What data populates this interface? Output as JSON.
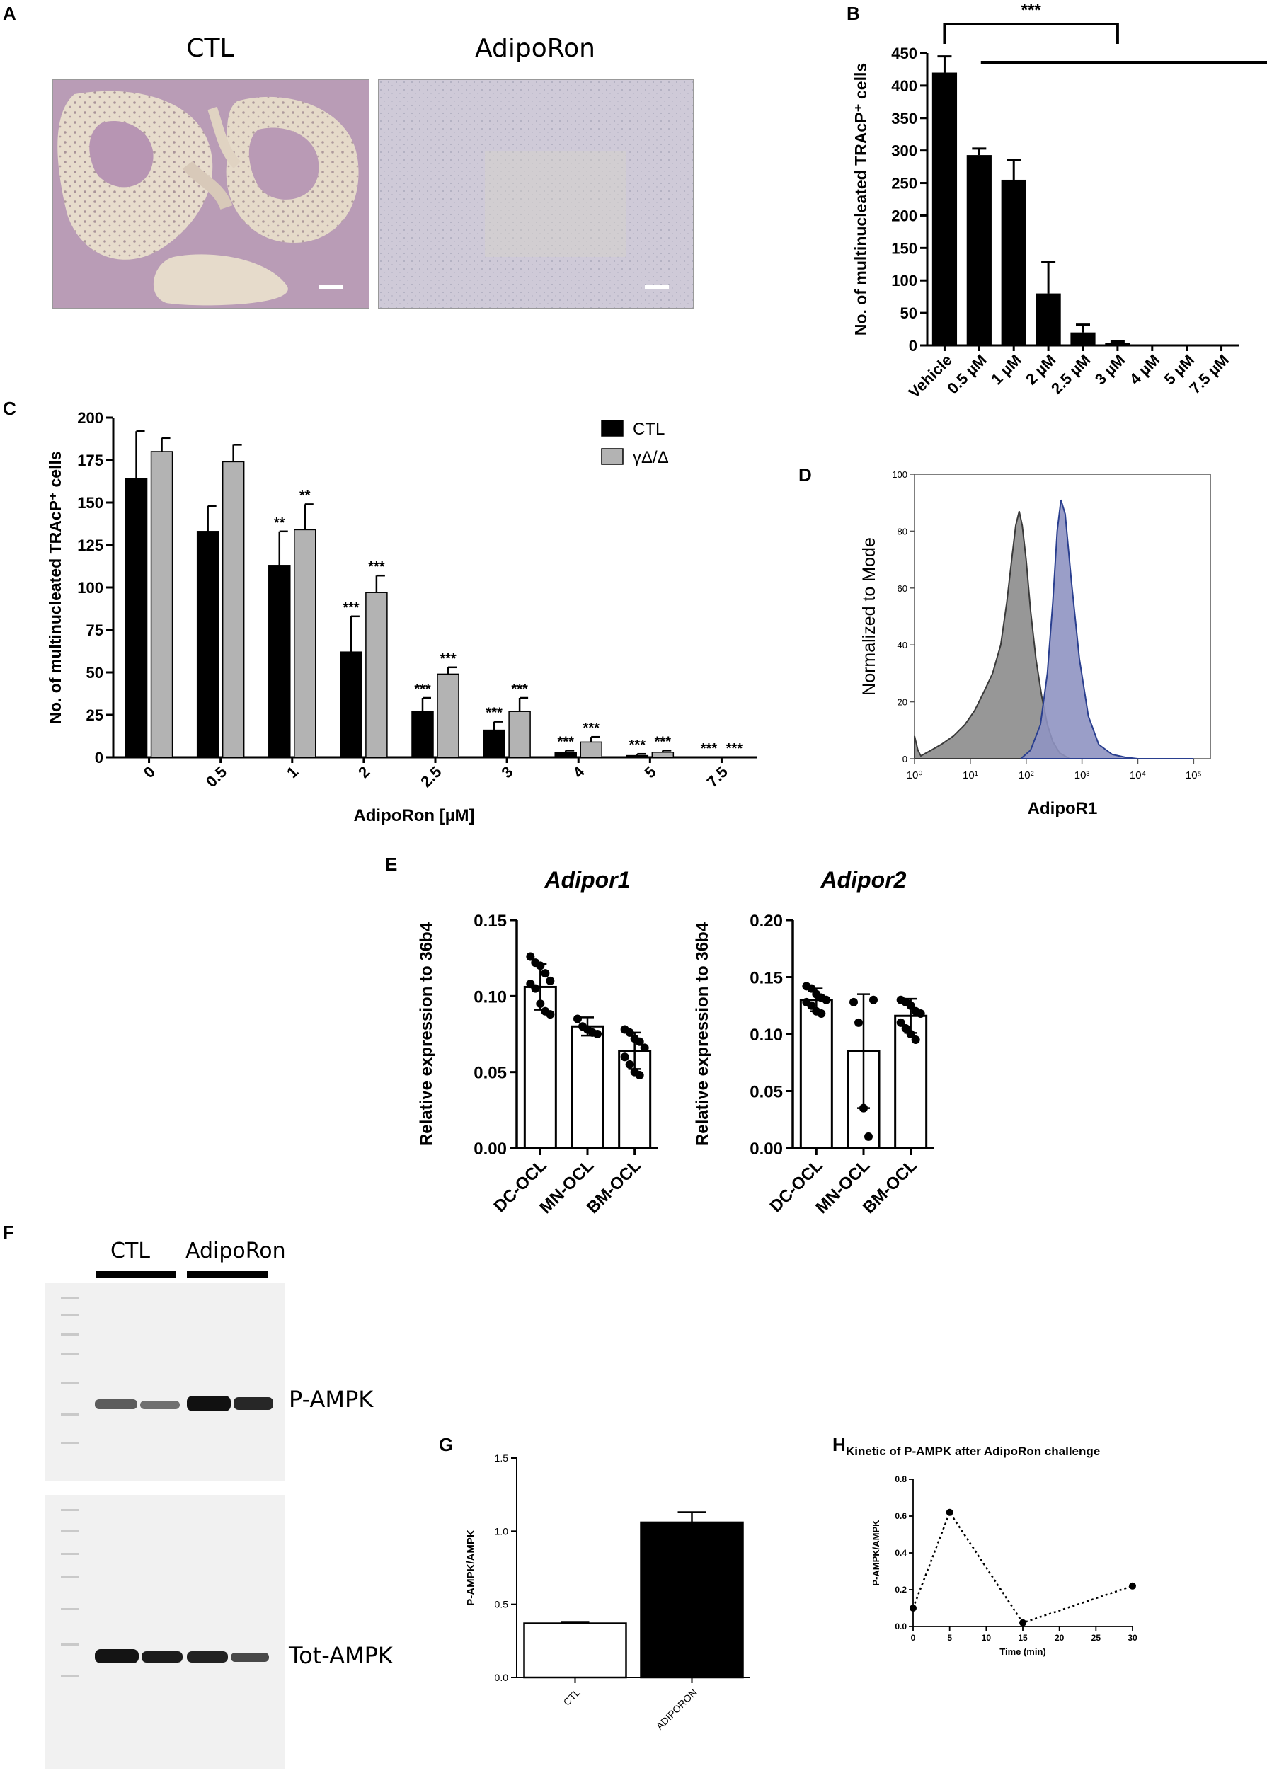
{
  "panels": {
    "A": {
      "label": "A",
      "images": [
        {
          "title": "CTL"
        },
        {
          "title": "AdipoRon"
        }
      ]
    },
    "B": {
      "label": "B"
    },
    "C": {
      "label": "C"
    },
    "D": {
      "label": "D"
    },
    "E": {
      "label": "E"
    },
    "F": {
      "label": "F",
      "groups": [
        "CTL",
        "AdipoRon"
      ],
      "bands": [
        "P-AMPK",
        "Tot-AMPK"
      ]
    },
    "G": {
      "label": "G"
    },
    "H": {
      "label": "H"
    }
  },
  "chart_data": [
    {
      "id": "B",
      "type": "bar",
      "ylabel": "No. of multinucleated TRAcP⁺ cells",
      "categories": [
        "Vehicle",
        "0.5 µM",
        "1 µM",
        "2 µM",
        "2.5 µM",
        "3 µM",
        "4 µM",
        "5 µM",
        "7.5 µM"
      ],
      "values": [
        420,
        293,
        255,
        80,
        20,
        4,
        0,
        0,
        0
      ],
      "errors": [
        25,
        10,
        30,
        48,
        12,
        2,
        0,
        0,
        0
      ],
      "ylim": [
        0,
        450
      ],
      "yticks": [
        0,
        50,
        100,
        150,
        200,
        250,
        300,
        350,
        400,
        450
      ],
      "significance": "***"
    },
    {
      "id": "C",
      "type": "bar",
      "xlabel": "AdipoRon [µM]",
      "ylabel": "No. of multinucleated TRAcP⁺ cells",
      "categories": [
        "0",
        "0.5",
        "1",
        "2",
        "2.5",
        "3",
        "4",
        "5",
        "7.5"
      ],
      "series": [
        {
          "name": "CTL",
          "color": "#000000",
          "values": [
            164,
            133,
            113,
            62,
            27,
            16,
            3,
            1,
            0
          ],
          "errors": [
            28,
            15,
            20,
            21,
            8,
            5,
            1,
            1,
            0
          ],
          "stars": [
            "",
            "",
            "**",
            "***",
            "***",
            "***",
            "***",
            "***",
            "***"
          ]
        },
        {
          "name": "γΔ/Δ",
          "color": "#b3b3b3",
          "values": [
            180,
            174,
            134,
            97,
            49,
            27,
            9,
            3,
            0
          ],
          "errors": [
            8,
            10,
            15,
            10,
            4,
            8,
            3,
            1,
            0
          ],
          "stars": [
            "",
            "",
            "**",
            "***",
            "***",
            "***",
            "***",
            "***",
            "***"
          ]
        }
      ],
      "ylim": [
        0,
        200
      ],
      "yticks": [
        0,
        25,
        50,
        75,
        100,
        125,
        150,
        175,
        200
      ],
      "legend": "top-right"
    },
    {
      "id": "D",
      "type": "area",
      "xlabel": "AdipoR1",
      "ylabel": "Normalized to Mode",
      "xscale": "log",
      "xticks": [
        "10⁰",
        "10¹",
        "10²",
        "10³",
        "10⁴",
        "10⁵"
      ],
      "yticks": [
        0,
        20,
        40,
        60,
        80,
        100
      ],
      "ylim": [
        0,
        100
      ],
      "series": [
        {
          "fill": "#8c8c8c",
          "stroke": "#3a3a3a",
          "x": [
            1.0,
            1.15,
            1.3,
            1.6,
            2,
            3,
            5,
            8,
            12,
            18,
            25,
            35,
            45,
            55,
            65,
            75,
            85,
            100,
            120,
            150,
            190,
            240,
            300,
            400,
            600
          ],
          "y": [
            8,
            3,
            1,
            2,
            3,
            5,
            8,
            12,
            17,
            24,
            30,
            40,
            55,
            70,
            82,
            87,
            82,
            70,
            52,
            35,
            22,
            12,
            6,
            2,
            0
          ]
        },
        {
          "fill": "#8f94c2",
          "stroke": "#2a3f8f",
          "x": [
            80,
            120,
            180,
            240,
            300,
            360,
            420,
            500,
            650,
            900,
            1300,
            2000,
            3500,
            6000,
            10000,
            50000,
            100000
          ],
          "y": [
            0,
            3,
            12,
            30,
            55,
            80,
            91,
            86,
            62,
            35,
            15,
            5,
            1.5,
            0.5,
            0,
            0,
            0
          ]
        }
      ]
    },
    {
      "id": "E1",
      "type": "bar",
      "title": "Adipor1",
      "ylabel": "Relative expression to 36b4",
      "categories": [
        "DC-OCL",
        "MN-OCL",
        "BM-OCL"
      ],
      "values": [
        0.106,
        0.08,
        0.064
      ],
      "errors": [
        0.015,
        0.006,
        0.012
      ],
      "points": [
        [
          0.126,
          0.122,
          0.12,
          0.115,
          0.11,
          0.108,
          0.105,
          0.095,
          0.09,
          0.088
        ],
        [
          0.085,
          0.08,
          0.078,
          0.076,
          0.075
        ],
        [
          0.078,
          0.076,
          0.072,
          0.07,
          0.066,
          0.06,
          0.055,
          0.05,
          0.048
        ]
      ],
      "ylim": [
        0,
        0.15
      ],
      "yticks": [
        "0.00",
        "0.05",
        "0.10",
        "0.15"
      ]
    },
    {
      "id": "E2",
      "type": "bar",
      "title": "Adipor2",
      "ylabel": "Relative expression to 36b4",
      "categories": [
        "DC-OCL",
        "MN-OCL",
        "BM-OCL"
      ],
      "values": [
        0.13,
        0.085,
        0.116
      ],
      "errors": [
        0.01,
        0.05,
        0.015
      ],
      "points": [
        [
          0.142,
          0.14,
          0.135,
          0.132,
          0.13,
          0.128,
          0.125,
          0.12,
          0.118
        ],
        [
          0.128,
          0.11,
          0.035,
          0.01,
          0.13
        ],
        [
          0.13,
          0.128,
          0.125,
          0.12,
          0.118,
          0.11,
          0.105,
          0.1,
          0.095
        ]
      ],
      "ylim": [
        0,
        0.2
      ],
      "yticks": [
        "0.00",
        "0.05",
        "0.10",
        "0.15",
        "0.20"
      ]
    },
    {
      "id": "G",
      "type": "bar",
      "ylabel": "P-AMPK/AMPK",
      "categories": [
        "CTL",
        "ADIPORON"
      ],
      "values": [
        0.37,
        1.06
      ],
      "errors": [
        0.01,
        0.07
      ],
      "colors": [
        "#ffffff",
        "#000000"
      ],
      "ylim": [
        0,
        1.5
      ],
      "yticks": [
        "0.0",
        "0.5",
        "1.0",
        "1.5"
      ]
    },
    {
      "id": "H",
      "type": "line",
      "title": "Kinetic of P-AMPK after AdipoRon challenge",
      "xlabel": "Time (min)",
      "ylabel": "P-AMPK/AMPK",
      "x": [
        0,
        5,
        15,
        30
      ],
      "y": [
        0.1,
        0.62,
        0.02,
        0.22
      ],
      "xlim": [
        0,
        30
      ],
      "ylim": [
        0,
        0.8
      ],
      "xticks": [
        0,
        5,
        10,
        15,
        20,
        25,
        30
      ],
      "yticks": [
        "0.0",
        "0.2",
        "0.4",
        "0.6",
        "0.8"
      ]
    }
  ]
}
